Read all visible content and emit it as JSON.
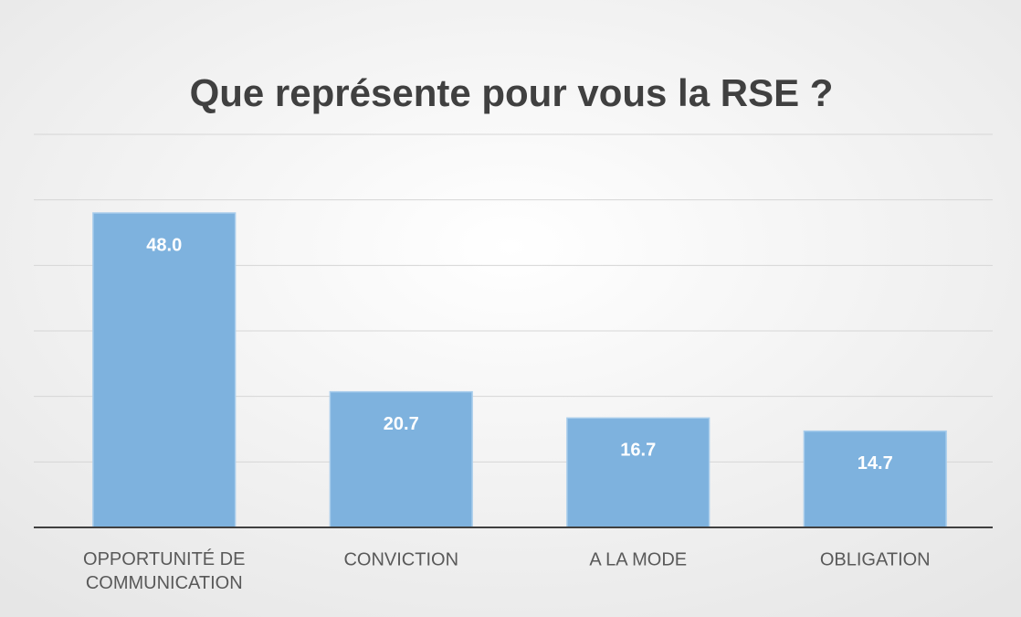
{
  "chart_data": {
    "type": "bar",
    "title": "Que représente pour vous la RSE ?",
    "categories": [
      "OPPORTUNITÉ DE COMMUNICATION",
      "CONVICTION",
      "A LA MODE",
      "OBLIGATION"
    ],
    "values": [
      48.0,
      20.7,
      16.7,
      14.7
    ],
    "value_labels": [
      "48.0",
      "20.7",
      "16.7",
      "14.7"
    ],
    "color": "#7eb2de",
    "ylim": [
      0,
      60
    ],
    "yticks": [
      0,
      10,
      20,
      30,
      40,
      50,
      60
    ],
    "grid": true
  }
}
